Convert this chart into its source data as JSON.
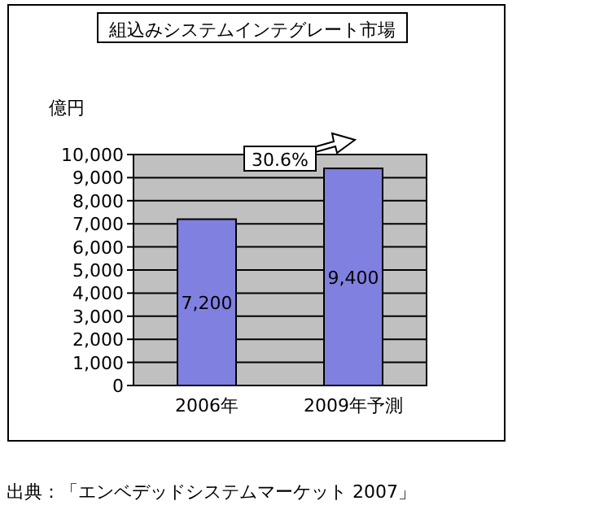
{
  "chart_data": {
    "type": "bar",
    "title": "組込みシステムインテグレート市場",
    "ylabel": "億円",
    "categories": [
      "2006年",
      "2009年予測"
    ],
    "values": [
      7200,
      9400
    ],
    "color": "#8080e0",
    "ylim": [
      0,
      10000
    ],
    "yticks": [
      {
        "value": 0,
        "label": "0"
      },
      {
        "value": 1000,
        "label": "1,000"
      },
      {
        "value": 2000,
        "label": "2,000"
      },
      {
        "value": 3000,
        "label": "3,000"
      },
      {
        "value": 4000,
        "label": "4,000"
      },
      {
        "value": 5000,
        "label": "5,000"
      },
      {
        "value": 6000,
        "label": "6,000"
      },
      {
        "value": 7000,
        "label": "7,000"
      },
      {
        "value": 8000,
        "label": "8,000"
      },
      {
        "value": 9000,
        "label": "9,000"
      },
      {
        "value": 10000,
        "label": "10,000"
      }
    ],
    "grid": "y",
    "value_labels": [
      "7,200",
      "9,400"
    ],
    "annotations": [
      "30.6%",
      "出典：「エンベデッドシステムマーケット 2007」"
    ]
  }
}
